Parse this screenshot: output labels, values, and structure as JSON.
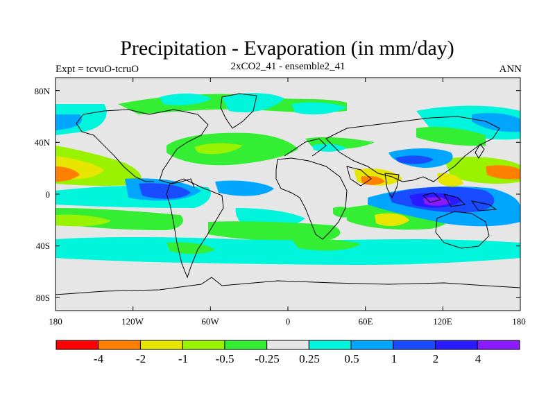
{
  "header": {
    "title": "Precipitation - Evaporation (in mm/day)",
    "experiment": "Expt = tcvuO-tcruO",
    "run": "2xCO2_41 - ensemble2_41",
    "season": "ANN"
  },
  "map": {
    "lat_labels": [
      "80N",
      "40N",
      "0",
      "40S",
      "80S"
    ],
    "lon_labels": [
      "180",
      "120W",
      "60W",
      "0",
      "60E",
      "120E",
      "180"
    ],
    "background_color": "#e6e6e6"
  },
  "colorbar": {
    "colors": [
      "#ff0000",
      "#ff8000",
      "#e6e600",
      "#99f200",
      "#33ee33",
      "#e6e6e6",
      "#00f5dc",
      "#00a6ff",
      "#1a4cff",
      "#2a1aff",
      "#8a1aff"
    ],
    "labels": [
      "-4",
      "-2",
      "-1",
      "-0.5",
      "-0.25",
      "0.25",
      "0.5",
      "1",
      "2",
      "4"
    ]
  }
}
